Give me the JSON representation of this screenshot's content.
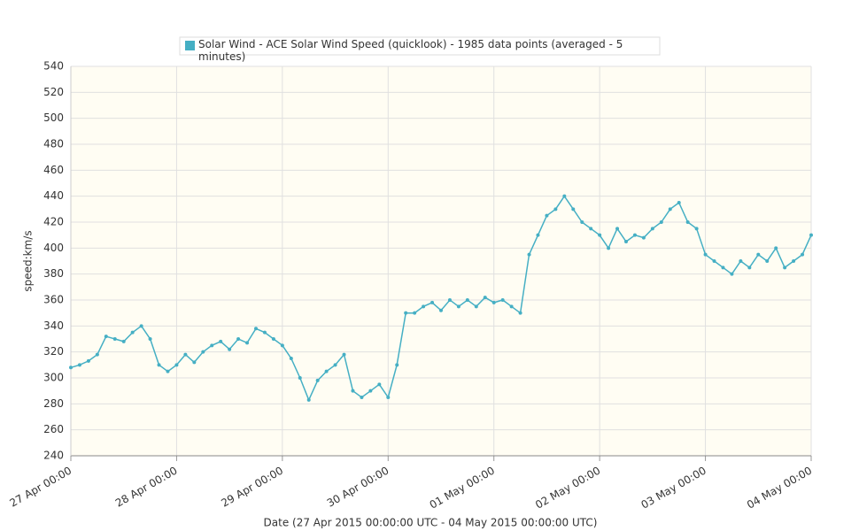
{
  "chart_data": {
    "type": "line",
    "legend": "Solar Wind - ACE Solar Wind Speed (quicklook) - 1985 data points (averaged - 5 minutes)",
    "x_label": "Date (27 Apr 2015 00:00:00 UTC - 04 May 2015 00:00:00 UTC)",
    "y_label": "speed:km/s",
    "grid": true,
    "x": [
      "2015-04-27 00:00",
      "2015-04-27 02:00",
      "2015-04-27 04:00",
      "2015-04-27 06:00",
      "2015-04-27 08:00",
      "2015-04-27 10:00",
      "2015-04-27 12:00",
      "2015-04-27 14:00",
      "2015-04-27 16:00",
      "2015-04-27 18:00",
      "2015-04-27 20:00",
      "2015-04-27 22:00",
      "2015-04-28 00:00",
      "2015-04-28 02:00",
      "2015-04-28 04:00",
      "2015-04-28 06:00",
      "2015-04-28 08:00",
      "2015-04-28 10:00",
      "2015-04-28 12:00",
      "2015-04-28 14:00",
      "2015-04-28 16:00",
      "2015-04-28 18:00",
      "2015-04-28 20:00",
      "2015-04-28 22:00",
      "2015-04-29 00:00",
      "2015-04-29 02:00",
      "2015-04-29 04:00",
      "2015-04-29 06:00",
      "2015-04-29 08:00",
      "2015-04-29 10:00",
      "2015-04-29 12:00",
      "2015-04-29 14:00",
      "2015-04-29 16:00",
      "2015-04-29 18:00",
      "2015-04-29 20:00",
      "2015-04-29 22:00",
      "2015-04-30 00:00",
      "2015-04-30 02:00",
      "2015-04-30 04:00",
      "2015-04-30 06:00",
      "2015-04-30 08:00",
      "2015-04-30 10:00",
      "2015-04-30 12:00",
      "2015-04-30 14:00",
      "2015-04-30 16:00",
      "2015-04-30 18:00",
      "2015-04-30 20:00",
      "2015-04-30 22:00",
      "2015-05-01 00:00",
      "2015-05-01 02:00",
      "2015-05-01 04:00",
      "2015-05-01 06:00",
      "2015-05-01 08:00",
      "2015-05-01 10:00",
      "2015-05-01 12:00",
      "2015-05-01 14:00",
      "2015-05-01 16:00",
      "2015-05-01 18:00",
      "2015-05-01 20:00",
      "2015-05-01 22:00",
      "2015-05-02 00:00",
      "2015-05-02 02:00",
      "2015-05-02 04:00",
      "2015-05-02 06:00",
      "2015-05-02 08:00",
      "2015-05-02 10:00",
      "2015-05-02 12:00",
      "2015-05-02 14:00",
      "2015-05-02 16:00",
      "2015-05-02 18:00",
      "2015-05-02 20:00",
      "2015-05-02 22:00",
      "2015-05-03 00:00",
      "2015-05-03 02:00",
      "2015-05-03 04:00",
      "2015-05-03 06:00",
      "2015-05-03 08:00",
      "2015-05-03 10:00",
      "2015-05-03 12:00",
      "2015-05-03 14:00",
      "2015-05-03 16:00",
      "2015-05-03 18:00",
      "2015-05-03 20:00",
      "2015-05-03 22:00",
      "2015-05-04 00:00"
    ],
    "series": [
      {
        "name": "Solar Wind - ACE Solar Wind Speed (quicklook) - 1985 data points (averaged - 5 minutes)",
        "color": "#45afc4",
        "values": [
          308,
          310,
          313,
          318,
          332,
          330,
          328,
          335,
          340,
          330,
          310,
          305,
          310,
          318,
          312,
          320,
          325,
          328,
          322,
          330,
          327,
          338,
          335,
          330,
          325,
          315,
          300,
          283,
          298,
          305,
          310,
          318,
          290,
          285,
          290,
          295,
          285,
          310,
          350,
          350,
          355,
          358,
          352,
          360,
          355,
          360,
          355,
          362,
          358,
          360,
          355,
          350,
          395,
          410,
          425,
          430,
          440,
          430,
          420,
          415,
          410,
          400,
          415,
          405,
          410,
          408,
          415,
          420,
          430,
          435,
          420,
          415,
          395,
          390,
          385,
          380,
          390,
          385,
          395,
          390,
          400,
          385,
          390,
          395,
          410
        ]
      }
    ],
    "xlim": [
      "2015-04-27 00:00",
      "2015-05-04 00:00"
    ],
    "xticks": [
      {
        "value": "2015-04-27 00:00",
        "label": "27 Apr 00:00"
      },
      {
        "value": "2015-04-28 00:00",
        "label": "28 Apr 00:00"
      },
      {
        "value": "2015-04-29 00:00",
        "label": "29 Apr 00:00"
      },
      {
        "value": "2015-04-30 00:00",
        "label": "30 Apr 00:00"
      },
      {
        "value": "2015-05-01 00:00",
        "label": "01 May 00:00"
      },
      {
        "value": "2015-05-02 00:00",
        "label": "02 May 00:00"
      },
      {
        "value": "2015-05-03 00:00",
        "label": "03 May 00:00"
      },
      {
        "value": "2015-05-04 00:00",
        "label": "04 May 00:00"
      }
    ],
    "ylim": [
      240,
      540
    ],
    "yticks": [
      240,
      260,
      280,
      300,
      320,
      340,
      360,
      380,
      400,
      420,
      440,
      460,
      480,
      500,
      520,
      540
    ]
  }
}
